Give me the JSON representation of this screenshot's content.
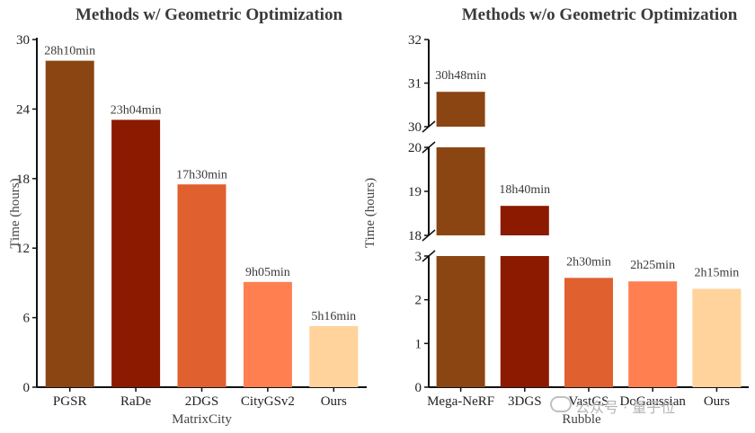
{
  "chart_data": [
    {
      "type": "bar",
      "title": "Methods w/ Geometric Optimization",
      "xlabel": "MatrixCity",
      "ylabel": "Time (hours)",
      "ylim": [
        0,
        30
      ],
      "yticks": [
        0,
        6,
        12,
        18,
        24,
        30
      ],
      "categories": [
        "PGSR",
        "RaDe",
        "2DGS",
        "CityGSv2",
        "Ours"
      ],
      "values": [
        28.17,
        23.07,
        17.5,
        9.08,
        5.27
      ],
      "labels": [
        "28h10min",
        "23h04min",
        "17h30min",
        "9h05min",
        "5h16min"
      ],
      "colors": [
        "#8B4513",
        "#8B1A00",
        "#E06030",
        "#FF7F50",
        "#FFD39B"
      ],
      "grid": false,
      "legend": "none"
    },
    {
      "type": "bar",
      "title": "Methods w/o Geometric Optimization",
      "xlabel": "Rubble",
      "ylabel": "Time (hours)",
      "broken_axis": [
        [
          0,
          3
        ],
        [
          18,
          20
        ],
        [
          30,
          32
        ]
      ],
      "yticks": [
        0,
        1,
        2,
        3,
        18,
        19,
        20,
        30,
        31,
        32
      ],
      "categories": [
        "Mega-NeRF",
        "3DGS",
        "VastGS",
        "DoGaussian",
        "Ours"
      ],
      "values": [
        30.8,
        18.67,
        2.5,
        2.42,
        2.25
      ],
      "labels": [
        "30h48min",
        "18h40min",
        "2h30min",
        "2h25min",
        "2h15min"
      ],
      "colors": [
        "#8B4513",
        "#8B1A00",
        "#E06030",
        "#FF7F50",
        "#FFD39B"
      ],
      "grid": false,
      "legend": "none"
    }
  ],
  "watermark": {
    "icon": "wechat-icon",
    "text": "公众号 · 量子位"
  }
}
